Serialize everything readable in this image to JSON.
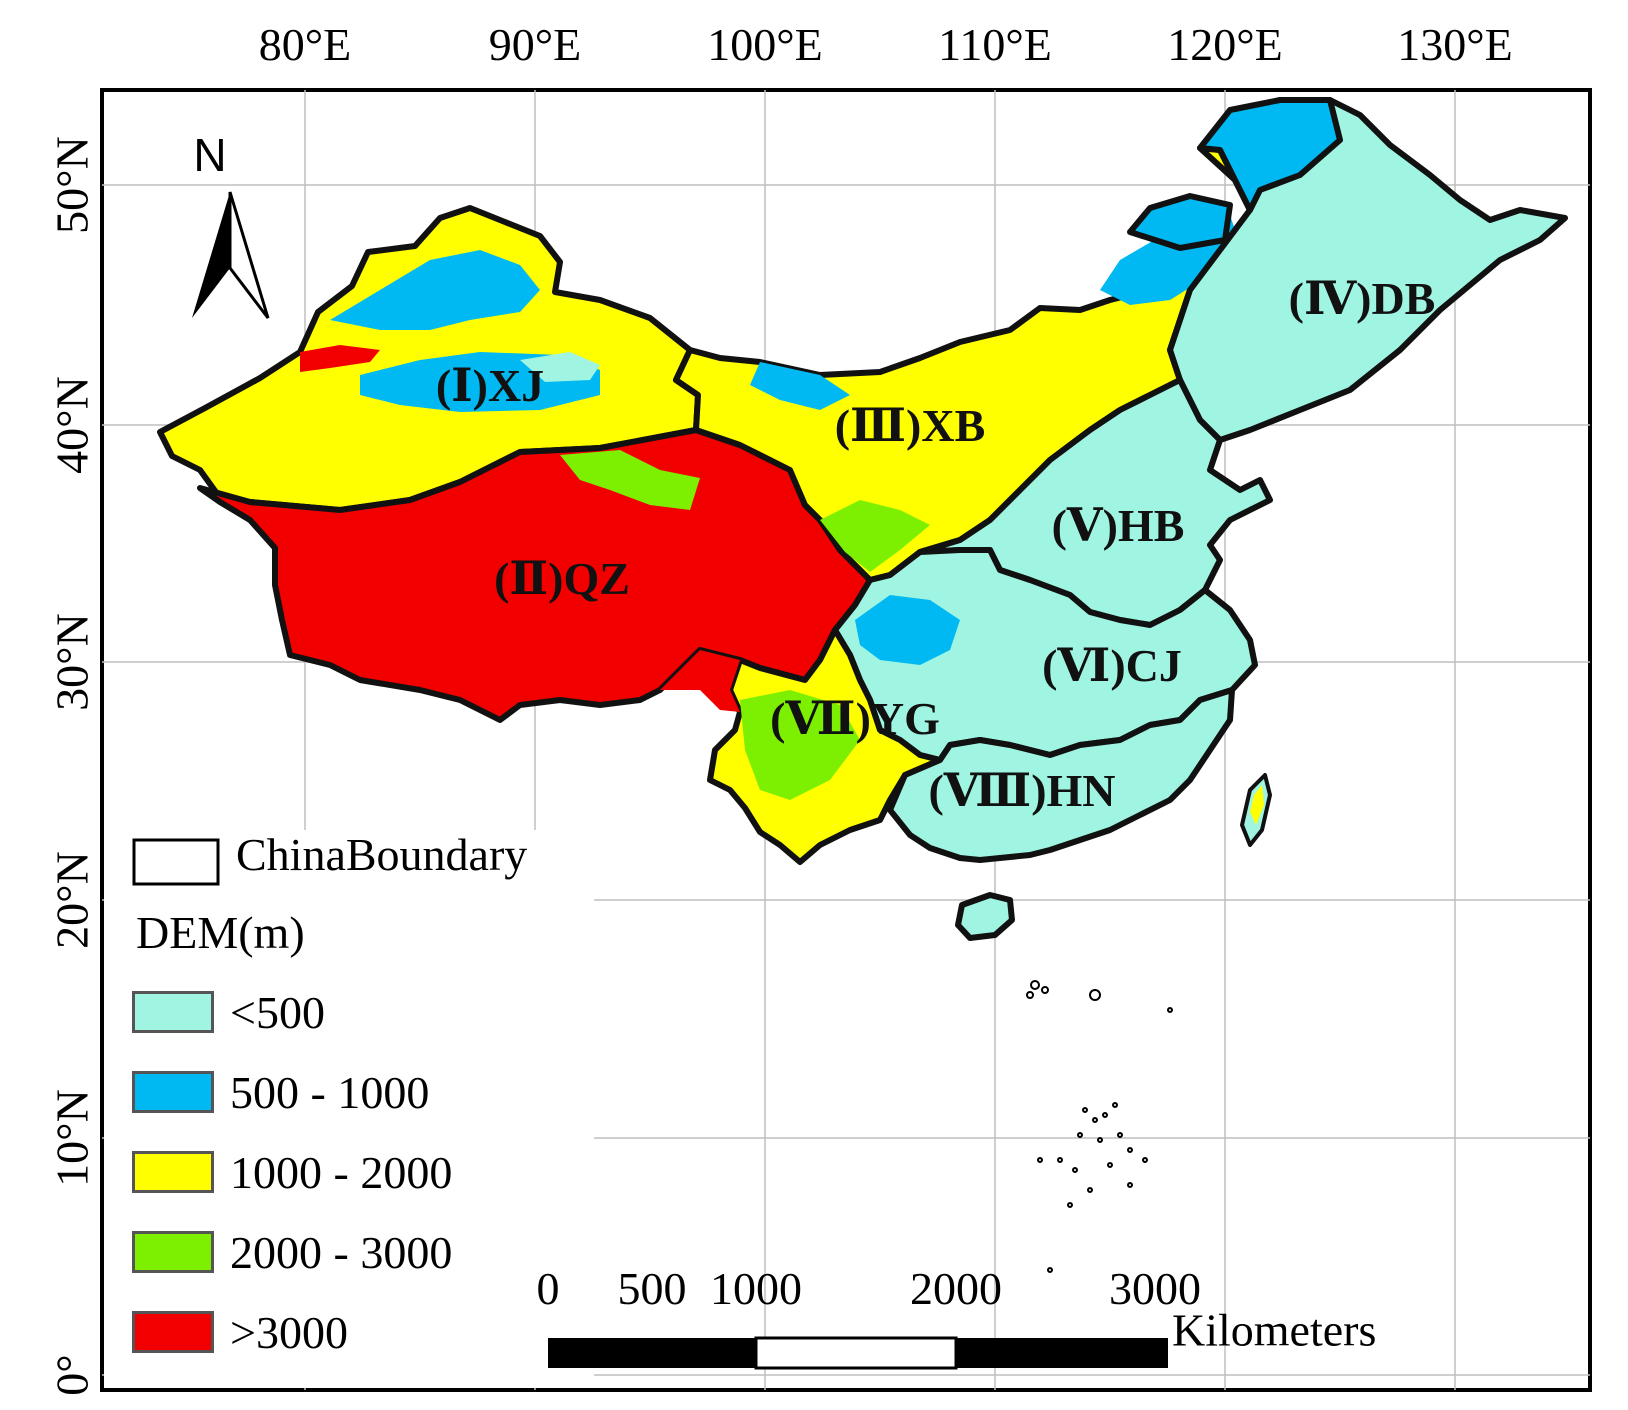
{
  "map": {
    "lon_ticks": [
      "80°E",
      "90°E",
      "100°E",
      "110°E",
      "120°E",
      "130°E"
    ],
    "lat_ticks": [
      "50°N",
      "40°N",
      "30°N",
      "20°N",
      "10°N",
      "0°"
    ],
    "north_arrow": "N",
    "regions": [
      {
        "label": "(Ⅰ)XJ"
      },
      {
        "label": "(Ⅱ)QZ"
      },
      {
        "label": "(Ⅲ)XB"
      },
      {
        "label": "(Ⅳ)DB"
      },
      {
        "label": "(Ⅴ)HB"
      },
      {
        "label": "(Ⅵ)CJ"
      },
      {
        "label": "(Ⅶ)YG"
      },
      {
        "label": "(Ⅷ)HN"
      }
    ]
  },
  "legend": {
    "boundary_label": "ChinaBoundary",
    "dem_title": "DEM(m)",
    "classes": [
      {
        "label": "<500",
        "color": "#9ff5e1"
      },
      {
        "label": "500 - 1000",
        "color": "#00b9f2"
      },
      {
        "label": "1000 - 2000",
        "color": "#ffff00"
      },
      {
        "label": "2000 - 3000",
        "color": "#7cf000"
      },
      {
        "label": ">3000",
        "color": "#f20000"
      }
    ]
  },
  "scale_bar": {
    "labels": [
      "0",
      "500",
      "1000",
      "2000",
      "3000"
    ],
    "unit": "Kilometers"
  }
}
